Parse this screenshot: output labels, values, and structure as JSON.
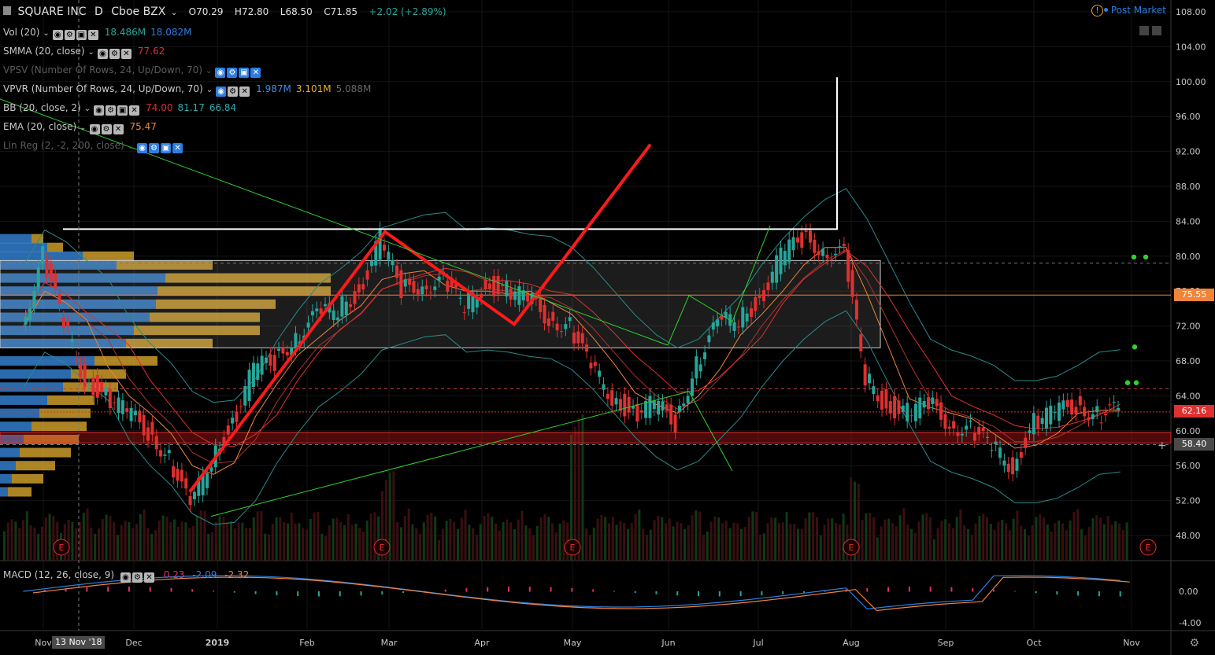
{
  "header": {
    "symbol": "SQUARE INC",
    "interval": "D",
    "exchange": "Cboe BZX",
    "open": "O70.29",
    "high": "H72.80",
    "low": "L68.50",
    "close": "C71.85",
    "change": "+2.02 (+2.89%)",
    "post_market": "Post Market"
  },
  "indicators": [
    {
      "label": "Vol (20)",
      "values": [
        "18.486M",
        "18.082M"
      ],
      "colors": [
        "#26a69a",
        "#2d7ee0"
      ],
      "dim": false
    },
    {
      "label": "SMMA (20, close)",
      "values": [
        "77.62"
      ],
      "colors": [
        "#e03030"
      ],
      "dim": false
    },
    {
      "label": "VPSV (Number Of Rows, 24, Up/Down, 70)",
      "values": [],
      "colors": [],
      "dim": true
    },
    {
      "label": "VPVR (Number Of Rows, 24, Up/Down, 70)",
      "values": [
        "1.987M",
        "3.101M",
        "5.088M"
      ],
      "colors": [
        "#3a8ee6",
        "#e7b030",
        "#666666"
      ],
      "dim": false
    },
    {
      "label": "BB (20, close, 2)",
      "values": [
        "74.00",
        "81.17",
        "66.84"
      ],
      "colors": [
        "#e03030",
        "#33aaaa",
        "#33aaaa"
      ],
      "dim": false
    },
    {
      "label": "EMA (20, close)",
      "values": [
        "75.47"
      ],
      "colors": [
        "#f0843a"
      ],
      "dim": false
    },
    {
      "label": "Lin Reg (2, -2, 200, close)",
      "values": [],
      "colors": [],
      "dim": true
    }
  ],
  "macd": {
    "label": "MACD (12, 26, close, 9)",
    "values": [
      "0.23",
      "-2.09",
      "-2.32"
    ],
    "colors": [
      "#e0306e",
      "#2d7ee0",
      "#f0843a"
    ]
  },
  "price_axis": {
    "ticks": [
      "108.00",
      "104.00",
      "100.00",
      "96.00",
      "92.00",
      "88.00",
      "84.00",
      "80.00",
      "76.00",
      "72.00",
      "68.00",
      "64.00",
      "60.00",
      "56.00",
      "52.00",
      "48.00"
    ]
  },
  "macd_axis": {
    "ticks": [
      "0.00",
      "-4.00"
    ]
  },
  "price_labels": {
    "ema": "75.55",
    "current": "62.16",
    "cursor": "58.40"
  },
  "time_axis": {
    "labels": [
      "Nov",
      "Dec",
      "2019",
      "Feb",
      "Mar",
      "Apr",
      "May",
      "Jun",
      "Jul",
      "Aug",
      "Sep",
      "Oct",
      "Nov"
    ],
    "cursor": "13 Nov '18"
  },
  "earnings_marker": "E",
  "colors": {
    "up": "#26a69a",
    "down": "#e03030",
    "background": "#000000",
    "drawing_red": "#ff1a1a",
    "drawing_green": "#2fd22f",
    "vpvr_up": "#3a8ee6",
    "vpvr_down": "#e7b030"
  },
  "chart_data": {
    "type": "candlestick",
    "title": "SQUARE INC · D · Cboe BZX",
    "x": [
      "Nov",
      "Dec",
      "2019",
      "Feb",
      "Mar",
      "Apr",
      "May",
      "Jun",
      "Jul",
      "Aug",
      "Sep",
      "Oct",
      "Nov"
    ],
    "ylim": [
      46,
      109
    ],
    "close_path": [
      [
        "2018-10-29",
        72
      ],
      [
        "2018-11-05",
        80
      ],
      [
        "2018-11-12",
        72
      ],
      [
        "2018-11-19",
        66
      ],
      [
        "2018-11-26",
        64
      ],
      [
        "2018-12-03",
        62
      ],
      [
        "2018-12-10",
        60
      ],
      [
        "2018-12-17",
        57
      ],
      [
        "2018-12-24",
        51
      ],
      [
        "2018-12-31",
        57
      ],
      [
        "2019-01-07",
        61
      ],
      [
        "2019-01-14",
        67
      ],
      [
        "2019-01-21",
        68
      ],
      [
        "2019-01-28",
        71
      ],
      [
        "2019-02-04",
        73
      ],
      [
        "2019-02-11",
        74
      ],
      [
        "2019-02-18",
        76
      ],
      [
        "2019-02-25",
        82
      ],
      [
        "2019-03-04",
        76
      ],
      [
        "2019-03-11",
        77
      ],
      [
        "2019-03-18",
        77
      ],
      [
        "2019-03-25",
        74
      ],
      [
        "2019-04-01",
        77
      ],
      [
        "2019-04-08",
        76
      ],
      [
        "2019-04-15",
        75
      ],
      [
        "2019-04-22",
        73
      ],
      [
        "2019-04-29",
        72
      ],
      [
        "2019-05-06",
        67
      ],
      [
        "2019-05-13",
        64
      ],
      [
        "2019-05-20",
        62
      ],
      [
        "2019-05-27",
        63
      ],
      [
        "2019-06-03",
        61
      ],
      [
        "2019-06-10",
        68
      ],
      [
        "2019-06-17",
        72
      ],
      [
        "2019-06-24",
        73
      ],
      [
        "2019-07-01",
        75
      ],
      [
        "2019-07-08",
        80
      ],
      [
        "2019-07-15",
        82
      ],
      [
        "2019-07-22",
        81
      ],
      [
        "2019-07-29",
        80
      ],
      [
        "2019-08-05",
        66
      ],
      [
        "2019-08-12",
        63
      ],
      [
        "2019-08-19",
        62
      ],
      [
        "2019-08-26",
        63
      ],
      [
        "2019-09-02",
        61
      ],
      [
        "2019-09-09",
        60
      ],
      [
        "2019-09-16",
        58
      ],
      [
        "2019-09-23",
        56
      ],
      [
        "2019-09-30",
        61
      ],
      [
        "2019-10-07",
        62
      ],
      [
        "2019-10-14",
        63
      ],
      [
        "2019-10-21",
        62
      ],
      [
        "2019-10-28",
        62.16
      ]
    ],
    "lines": {
      "ema_20": 75.47,
      "smma_20": 77.62,
      "bb_basis": 74.0,
      "bb_upper": 81.17,
      "bb_lower": 66.84
    },
    "macd": {
      "hist": 0.23,
      "macd": -2.09,
      "signal": -2.32
    }
  }
}
